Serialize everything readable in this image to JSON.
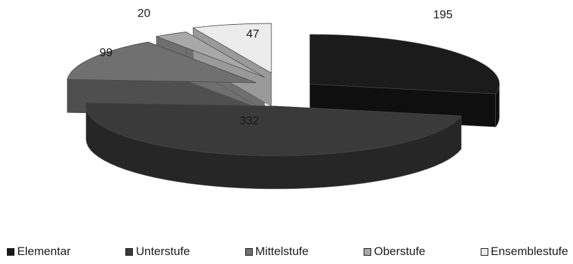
{
  "chart_data": {
    "type": "pie",
    "title": "",
    "categories": [
      "Elementar",
      "Unterstufe",
      "Mittelstufe",
      "Oberstufe",
      "Ensemblestufe"
    ],
    "values": [
      195,
      332,
      99,
      20,
      47
    ],
    "colors": [
      "#1b1b1b",
      "#3a3a3a",
      "#707070",
      "#a8a8a8",
      "#ececec"
    ],
    "labels": [
      "195",
      "332",
      "99",
      "20",
      "47"
    ],
    "legend_position": "bottom",
    "style": "3d-exploded"
  }
}
